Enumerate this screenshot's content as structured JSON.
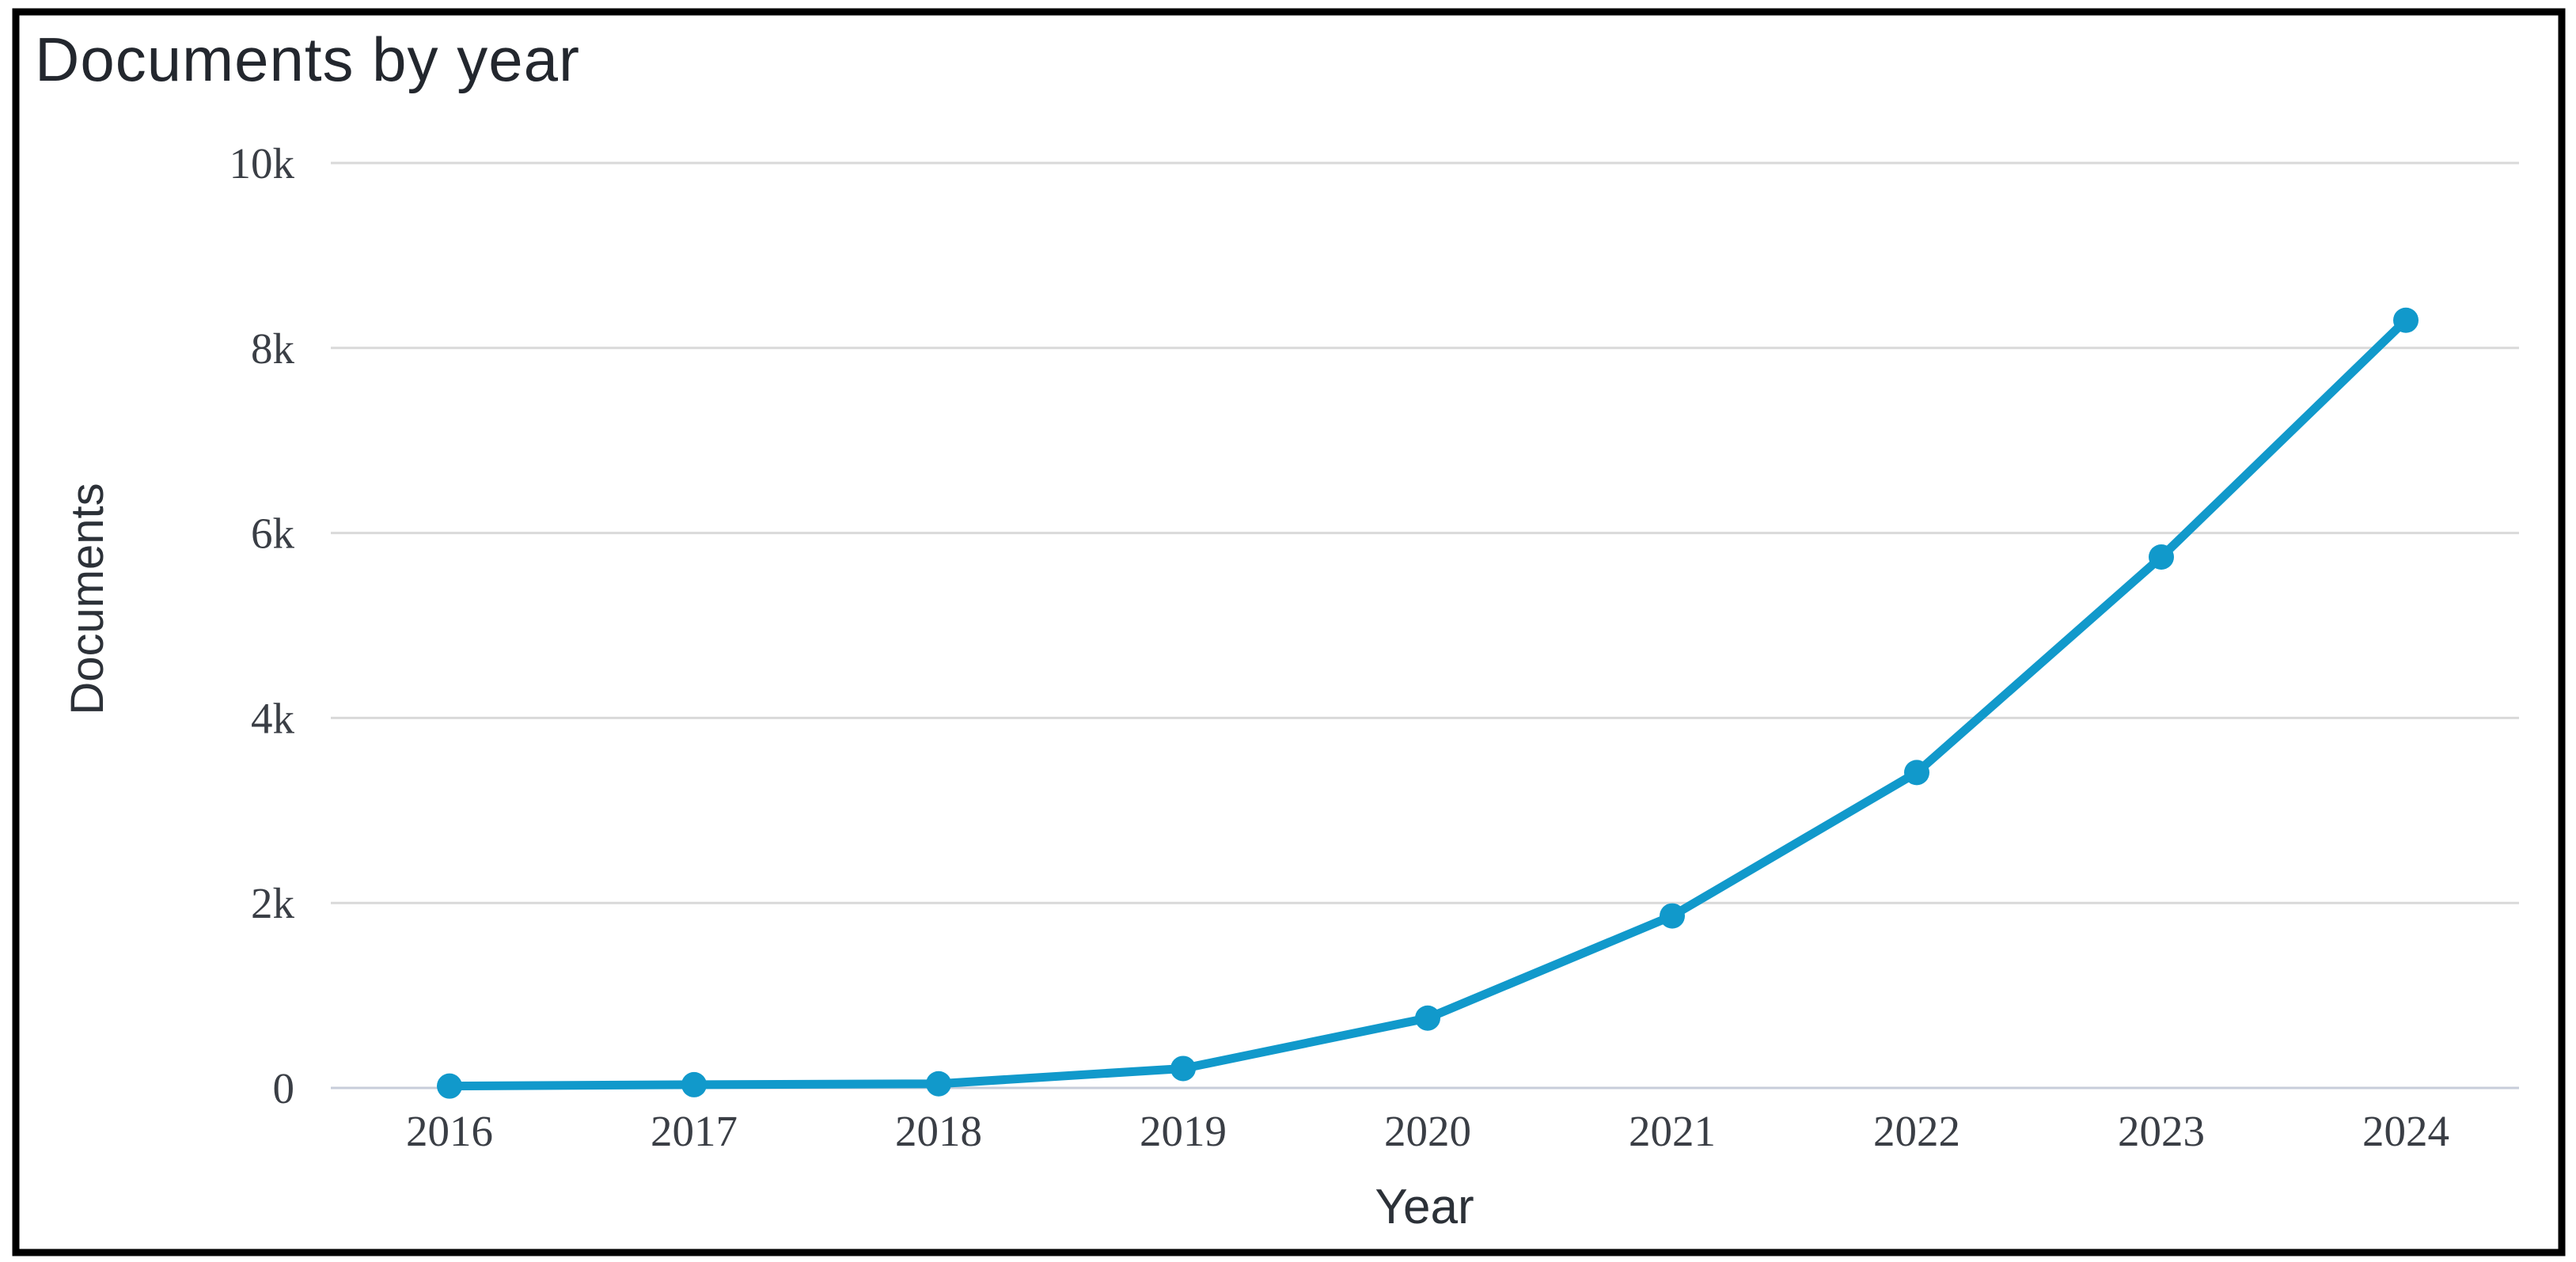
{
  "chart": {
    "title": "Documents by year",
    "y_axis_title": "Documents",
    "x_axis_title": "Year",
    "colors": {
      "line": "#1199cb",
      "gridline": "#d9d9d9",
      "zero_line": "#c7cdda",
      "frame": "#000000",
      "title_text": "#23272e",
      "axis_title_text": "#2c3138",
      "tick_text": "#3a3e45",
      "background": "#ffffff"
    }
  },
  "chart_data": {
    "type": "line",
    "title": "Documents by year",
    "xlabel": "Year",
    "ylabel": "Documents",
    "categories": [
      "2016",
      "2017",
      "2018",
      "2019",
      "2020",
      "2021",
      "2022",
      "2023",
      "2024"
    ],
    "series": [
      {
        "name": "Documents",
        "values": [
          20,
          35,
          45,
          210,
          755,
          1860,
          3410,
          5740,
          8300
        ]
      }
    ],
    "ylim": [
      0,
      10000
    ],
    "yticks": [
      0,
      2000,
      4000,
      6000,
      8000,
      10000
    ],
    "y_tick_labels": [
      "0",
      "2k",
      "4k",
      "6k",
      "8k",
      "10k"
    ],
    "grid": "horizontal",
    "legend": "none",
    "markers": "circle"
  }
}
